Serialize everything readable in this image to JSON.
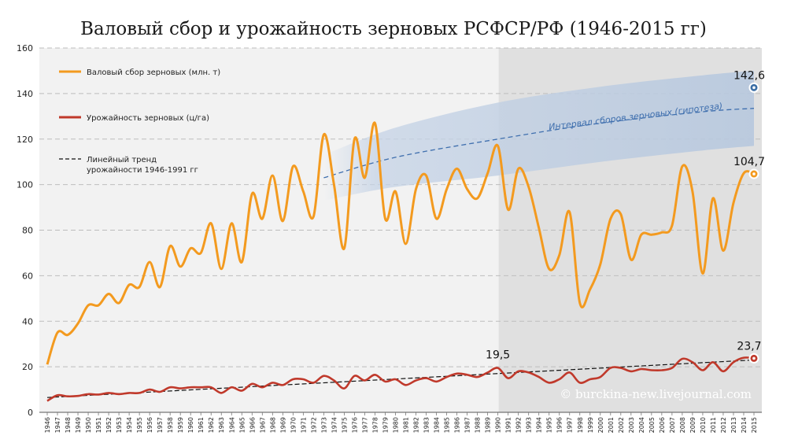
{
  "chart_data": {
    "type": "line",
    "title": "Валовый сбор и урожайность зерновых РСФСР/РФ (1946-2015 гг)",
    "ylim": [
      0,
      160
    ],
    "yticks": [
      0,
      20,
      40,
      60,
      80,
      100,
      120,
      140,
      160
    ],
    "x": [
      1946,
      1947,
      1948,
      1949,
      1950,
      1951,
      1952,
      1953,
      1954,
      1955,
      1956,
      1957,
      1958,
      1959,
      1960,
      1961,
      1962,
      1963,
      1964,
      1965,
      1966,
      1967,
      1968,
      1969,
      1970,
      1971,
      1972,
      1973,
      1974,
      1975,
      1976,
      1977,
      1978,
      1979,
      1980,
      1981,
      1982,
      1983,
      1984,
      1985,
      1986,
      1987,
      1988,
      1989,
      1990,
      1991,
      1992,
      1993,
      1994,
      1995,
      1996,
      1997,
      1998,
      1999,
      2000,
      2001,
      2002,
      2003,
      2004,
      2005,
      2006,
      2007,
      2008,
      2009,
      2010,
      2011,
      2012,
      2013,
      2014,
      2015
    ],
    "xtick_labels": [
      "1946",
      "1947",
      "1948",
      "1949",
      "1950",
      "1951",
      "1952",
      "1953",
      "1954",
      "1955",
      "1956",
      "1957",
      "1958",
      "1959",
      "1960",
      "1961",
      "1962",
      "1963",
      "1964",
      "1965",
      "1966",
      "1967",
      "1968",
      "1969",
      "1970",
      "1971",
      "1972",
      "1973",
      "1974",
      "1975",
      "1976",
      "1977",
      "1978",
      "1979",
      "1980",
      "1981",
      "1982",
      "1983",
      "1984",
      "1985",
      "1986",
      "1987",
      "1988",
      "1989",
      "1990",
      "1991",
      "1992",
      "1993",
      "1994",
      "1995",
      "1996",
      "1997",
      "1998",
      "1999",
      "2000",
      "2001",
      "2002",
      "2003",
      "2004",
      "2005",
      "2006",
      "2007",
      "2008",
      "2009",
      "2010",
      "2011",
      "2012",
      "2013",
      "2014",
      "2015"
    ],
    "series": [
      {
        "name": "Валовый сбор зерновых (млн. т)",
        "color": "#f39a1f",
        "values": [
          21,
          35,
          34,
          39,
          47,
          47,
          52,
          48,
          56,
          55,
          66,
          55,
          73,
          64,
          72,
          70,
          83,
          63,
          83,
          66,
          96,
          85,
          104,
          84,
          108,
          97,
          86,
          122,
          100,
          72,
          120,
          103,
          127,
          85,
          97,
          74,
          98,
          104,
          85,
          98,
          107,
          98,
          94,
          105,
          117,
          89,
          107,
          99,
          81,
          63,
          69,
          88,
          48,
          54,
          65,
          85,
          87,
          67,
          78,
          78,
          79,
          82,
          108,
          97,
          61,
          94,
          71,
          92,
          105,
          104.7
        ]
      },
      {
        "name": "Урожайность зерновых (ц/га)",
        "color": "#c0392b",
        "values": [
          5,
          7.5,
          7,
          7.2,
          8,
          7.8,
          8.5,
          8,
          8.5,
          8.5,
          10,
          9,
          11,
          10.5,
          11,
          11,
          11,
          8.5,
          11,
          9.5,
          12.5,
          11,
          13,
          12,
          14.5,
          14.5,
          13,
          16,
          14,
          10.5,
          16,
          14,
          16.5,
          13.5,
          14.5,
          12,
          14,
          15,
          13.5,
          15.5,
          17,
          16.5,
          15.5,
          17.5,
          19.5,
          15,
          18,
          17.5,
          15.5,
          13,
          14.5,
          17.5,
          13,
          14.5,
          15.5,
          19.5,
          19.5,
          18,
          19,
          18.5,
          18.5,
          19.5,
          23.5,
          22,
          18.5,
          22,
          18,
          22,
          24,
          23.7
        ]
      }
    ],
    "trend": {
      "label": "Линейный тренд урожайности 1946-1991 гг",
      "label_line1": "Линейный тренд",
      "label_line2": "урожайности 1946-1991 гг",
      "x": [
        1946,
        2015
      ],
      "y": [
        6.5,
        23
      ]
    },
    "hypothesis": {
      "label": "Интервал сборов зерновых (гипотеза)",
      "x": [
        1973,
        1980,
        1990,
        2000,
        2010,
        2015
      ],
      "center": [
        103,
        112,
        120,
        127,
        132,
        133.5
      ],
      "upper": [
        113,
        125,
        136,
        143,
        148,
        150
      ],
      "lower": [
        93,
        99,
        104,
        110,
        115,
        117
      ]
    },
    "shaded_from_year": 1991,
    "annotations": [
      {
        "text": "142,6",
        "x": 2015,
        "y": 142.6,
        "color": "#3b6ea5",
        "marker": true
      },
      {
        "text": "104,7",
        "x": 2015,
        "y": 104.7,
        "color": "#f39a1f",
        "marker": true
      },
      {
        "text": "23,7",
        "x": 2015,
        "y": 23.7,
        "color": "#c0392b",
        "marker": true
      },
      {
        "text": "19,5",
        "x": 1990,
        "y": 19.5,
        "color": "#c0392b",
        "marker": false
      }
    ],
    "watermark": "© burckina-new.livejournal.com"
  }
}
